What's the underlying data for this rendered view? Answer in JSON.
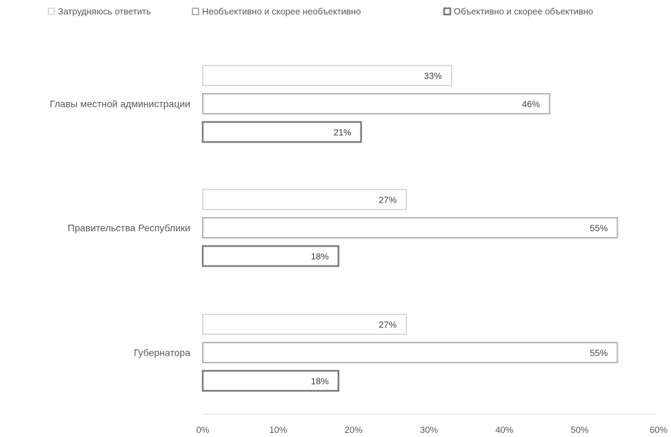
{
  "chart_data": {
    "type": "bar",
    "orientation": "horizontal",
    "categories": [
      "Главы местной администрации",
      "Правительства Республики",
      "Губернатора"
    ],
    "series": [
      {
        "name": "Затрудняюсь ответить",
        "values": [
          33,
          27,
          27
        ],
        "labels": [
          "33%",
          "27%",
          "27%"
        ],
        "stroke": "#d0d0d0",
        "stroke_weight": "thin"
      },
      {
        "name": "Необъективно и скорее необъективно",
        "values": [
          46,
          55,
          55
        ],
        "labels": [
          "46%",
          "55%",
          "55%"
        ],
        "stroke": "#b4b4b4",
        "stroke_weight": "medium"
      },
      {
        "name": "Объективно и скорее объективно",
        "values": [
          21,
          18,
          18
        ],
        "labels": [
          "21%",
          "18%",
          "18%"
        ],
        "stroke": "#7a7a7a",
        "stroke_weight": "thick"
      }
    ],
    "xlim": [
      0,
      60
    ],
    "ticks": [
      0,
      10,
      20,
      30,
      40,
      50,
      60
    ],
    "tick_labels": [
      "0%",
      "10%",
      "20%",
      "30%",
      "40%",
      "50%",
      "60%"
    ],
    "legend_position": "top",
    "grid": false,
    "title": "",
    "xlabel": "",
    "ylabel": ""
  }
}
